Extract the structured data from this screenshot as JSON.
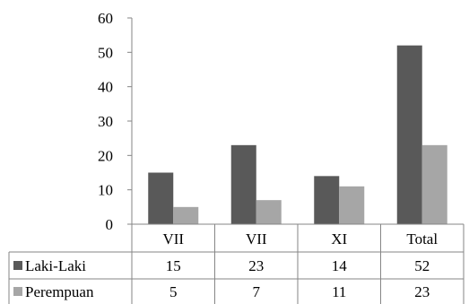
{
  "chart_data": {
    "type": "bar",
    "categories": [
      "VII",
      "VII",
      "XI",
      "Total"
    ],
    "series": [
      {
        "name": "Laki-Laki",
        "values": [
          15,
          23,
          14,
          52
        ],
        "color": "#595959"
      },
      {
        "name": "Perempuan",
        "values": [
          5,
          7,
          11,
          23
        ],
        "color": "#a6a6a6"
      }
    ],
    "ylim": [
      0,
      60
    ],
    "yticks": [
      0,
      10,
      20,
      30,
      40,
      50,
      60
    ],
    "grid": false,
    "legend": "data-table",
    "data_table": true
  }
}
